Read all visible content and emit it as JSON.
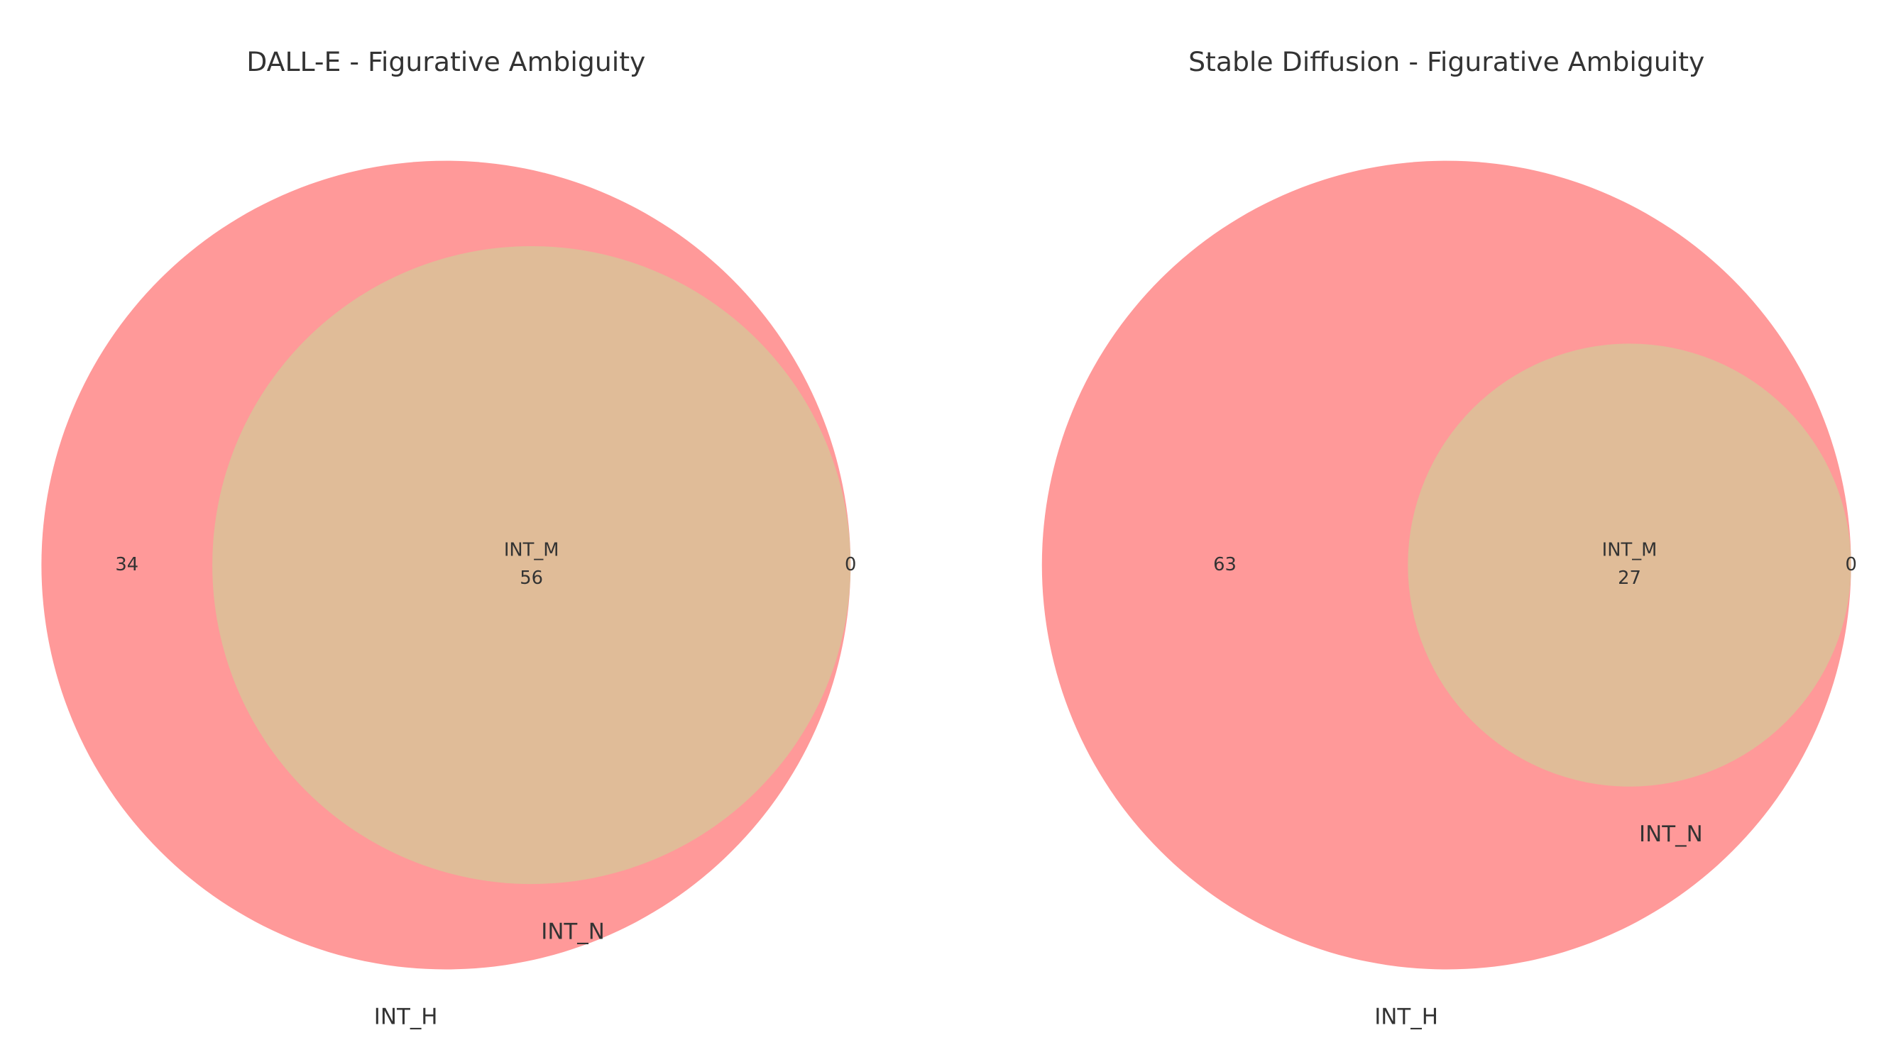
{
  "chart_data": [
    {
      "type": "venn",
      "title": "DALL-E - Figurative Ambiguity",
      "set_labels": [
        "INT_H",
        "INT_N"
      ],
      "intersection_label": "INT_M",
      "values": [
        34,
        0,
        56
      ],
      "colors": [
        "#ff9999",
        "#e0bc98"
      ]
    },
    {
      "type": "venn",
      "title": "Stable Diffusion - Figurative Ambiguity",
      "set_labels": [
        "INT_H",
        "INT_N"
      ],
      "intersection_label": "INT_M",
      "values": [
        63,
        0,
        27
      ],
      "colors": [
        "#ff9999",
        "#e0bc98"
      ]
    }
  ]
}
